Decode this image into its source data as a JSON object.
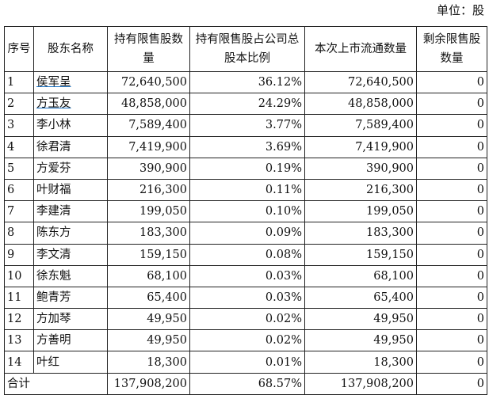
{
  "unit_label": "单位：股",
  "headers": [
    "序号",
    "股东名称",
    "持有限售股数量",
    "持有限售股占公司总股本比例",
    "本次上市流通数量",
    "剩余限售股数量"
  ],
  "rows": [
    [
      "1",
      "侯军呈",
      "72,640,500",
      "36.12%",
      "72,640,500",
      "0"
    ],
    [
      "2",
      "方玉友",
      "48,858,000",
      "24.29%",
      "48,858,000",
      "0"
    ],
    [
      "3",
      "李小林",
      "7,589,400",
      "3.77%",
      "7,589,400",
      "0"
    ],
    [
      "4",
      "徐君清",
      "7,419,900",
      "3.69%",
      "7,419,900",
      "0"
    ],
    [
      "5",
      "方爱芬",
      "390,900",
      "0.19%",
      "390,900",
      "0"
    ],
    [
      "6",
      "叶财福",
      "216,300",
      "0.11%",
      "216,300",
      "0"
    ],
    [
      "7",
      "李建清",
      "199,050",
      "0.10%",
      "199,050",
      "0"
    ],
    [
      "8",
      "陈东方",
      "183,300",
      "0.09%",
      "183,300",
      "0"
    ],
    [
      "9",
      "李文清",
      "159,150",
      "0.08%",
      "159,150",
      "0"
    ],
    [
      "10",
      "徐东魁",
      "68,100",
      "0.03%",
      "68,100",
      "0"
    ],
    [
      "11",
      "鲍青芳",
      "65,400",
      "0.03%",
      "65,400",
      "0"
    ],
    [
      "12",
      "方加琴",
      "49,950",
      "0.02%",
      "49,950",
      "0"
    ],
    [
      "13",
      "方善明",
      "49,950",
      "0.02%",
      "49,950",
      "0"
    ],
    [
      "14",
      "叶红",
      "18,300",
      "0.01%",
      "18,300",
      "0"
    ]
  ],
  "total": [
    "合计",
    "137,908,200",
    "68.57%",
    "137,908,200",
    "0"
  ]
}
